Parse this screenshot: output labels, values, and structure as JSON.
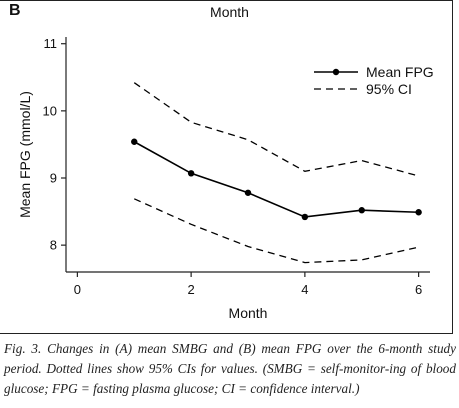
{
  "panel_letter": "B",
  "top_title": "Month",
  "caption": "Fig. 3. Changes in (A) mean SMBG and (B) mean FPG over the 6-month study period. Dotted lines show 95% CIs for values. (SMBG = self-monitor-ing of blood glucose; FPG = fasting plasma glucose; CI = confidence interval.)",
  "chart_data": {
    "type": "line",
    "title": "",
    "xlabel": "Month",
    "ylabel": "Mean FPG (mmol/L)",
    "xlim": [
      -0.2,
      6.2
    ],
    "ylim": [
      7.6,
      11.1
    ],
    "xticks": [
      0,
      2,
      4,
      6
    ],
    "yticks": [
      8,
      9,
      10,
      11
    ],
    "legend_position": "top-right",
    "series": [
      {
        "name": "Mean FPG",
        "style": "solid-with-markers",
        "color": "#000000",
        "x": [
          1,
          2,
          3,
          4,
          5,
          6
        ],
        "y": [
          9.54,
          9.07,
          8.78,
          8.42,
          8.52,
          8.49
        ]
      },
      {
        "name": "95% CI",
        "style": "dashed",
        "color": "#000000",
        "x": [
          1,
          2,
          3,
          4,
          5,
          6
        ],
        "y": [
          10.42,
          9.83,
          9.57,
          9.1,
          9.26,
          9.03
        ]
      },
      {
        "name": "",
        "style": "dashed",
        "color": "#000000",
        "x": [
          1,
          2,
          3,
          4,
          5,
          6
        ],
        "y": [
          8.69,
          8.31,
          7.98,
          7.74,
          7.78,
          7.97
        ]
      }
    ]
  }
}
